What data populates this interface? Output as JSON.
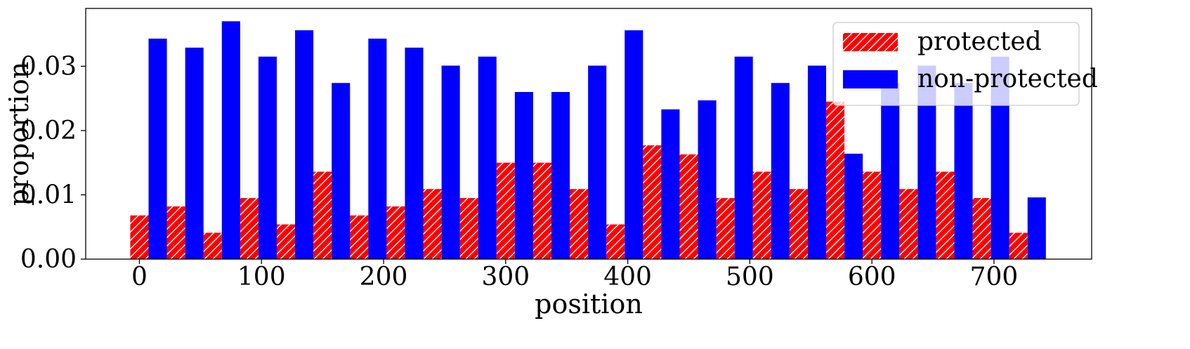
{
  "chart_data": {
    "type": "bar",
    "xlabel": "position",
    "ylabel": "proportion",
    "xlim": [
      -44,
      780
    ],
    "ylim": [
      0,
      0.039
    ],
    "bin_width": 30,
    "xticks": [
      0,
      100,
      200,
      300,
      400,
      500,
      600,
      700
    ],
    "xtick_labels": [
      "0",
      "100",
      "200",
      "300",
      "400",
      "500",
      "600",
      "700"
    ],
    "yticks": [
      0,
      0.01,
      0.02,
      0.03
    ],
    "ytick_labels": [
      "0.00",
      "0.01",
      "0.02",
      "0.03"
    ],
    "grid": false,
    "legend_position": "top-right",
    "x": [
      0,
      30,
      60,
      90,
      120,
      150,
      180,
      210,
      240,
      270,
      300,
      330,
      360,
      390,
      420,
      450,
      480,
      510,
      540,
      570,
      600,
      630,
      660,
      690,
      720
    ],
    "series": [
      {
        "name": "protected",
        "color": "#ff0000",
        "hatch": "diagonal",
        "values": [
          0.0068,
          0.0082,
          0.0041,
          0.0095,
          0.0054,
          0.0136,
          0.0068,
          0.0082,
          0.0109,
          0.0095,
          0.015,
          0.015,
          0.0109,
          0.0054,
          0.0177,
          0.0163,
          0.0095,
          0.0136,
          0.0109,
          0.0245,
          0.0136,
          0.0109,
          0.0136,
          0.0095,
          0.0041
        ]
      },
      {
        "name": "non-protected",
        "color": "#0000ff",
        "hatch": "none",
        "values": [
          0.0343,
          0.0329,
          0.037,
          0.0315,
          0.0356,
          0.0274,
          0.0343,
          0.0329,
          0.0301,
          0.0315,
          0.026,
          0.026,
          0.0301,
          0.0356,
          0.0233,
          0.0247,
          0.0315,
          0.0274,
          0.0301,
          0.0164,
          0.0274,
          0.0301,
          0.0274,
          0.0315,
          0.0096
        ]
      }
    ]
  }
}
